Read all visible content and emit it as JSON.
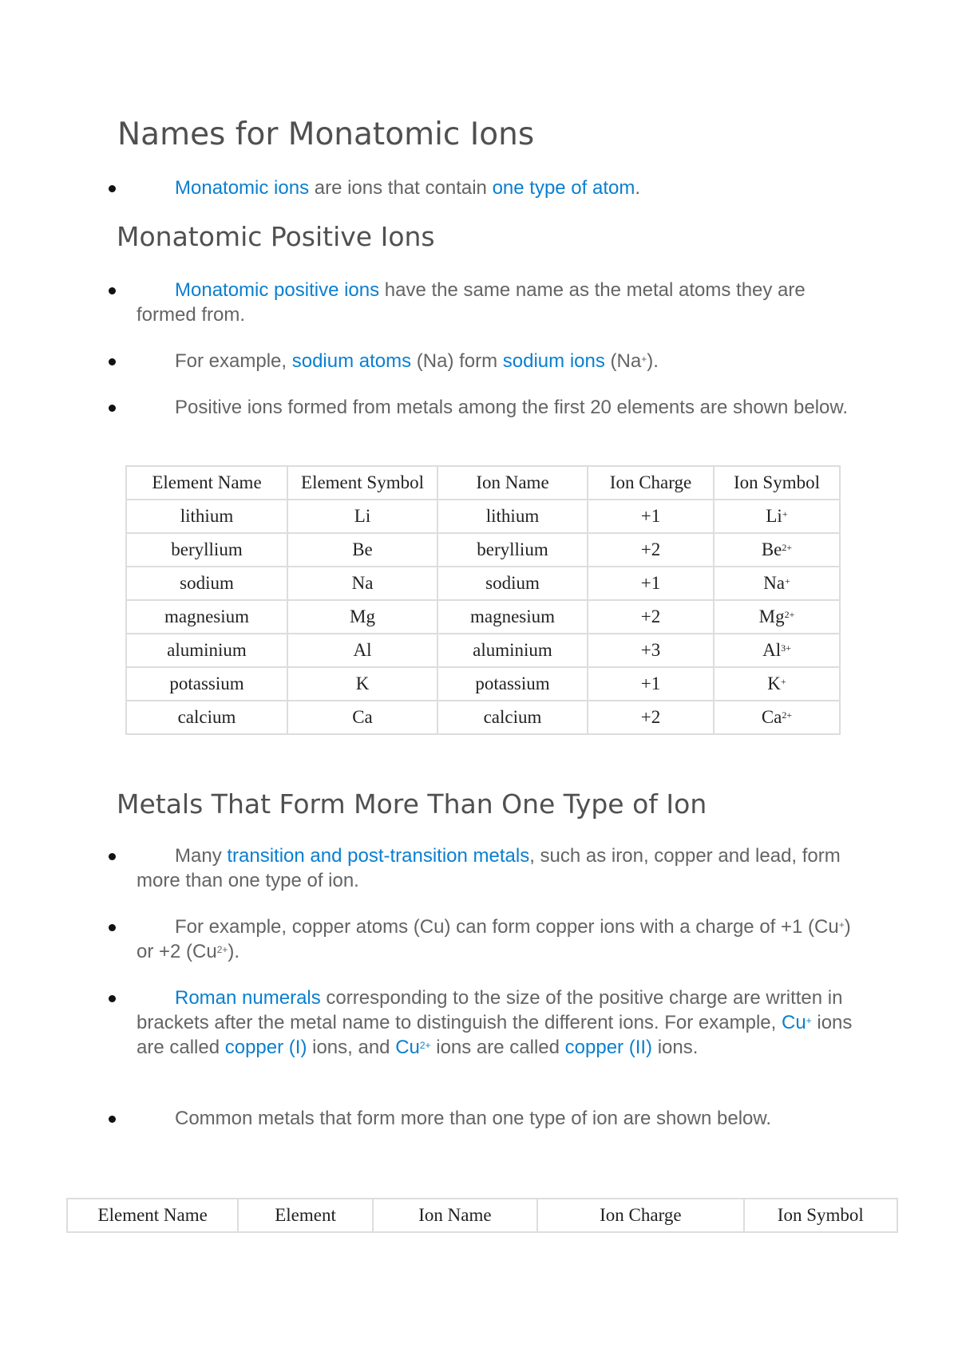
{
  "title": "Names for Monatomic Ions",
  "sections": [
    {
      "bullets": [
        [
          {
            "t": "Monatomic ions",
            "hl": true
          },
          {
            "t": " are ions that contain "
          },
          {
            "t": "one type of atom",
            "hl": true
          },
          {
            "t": "."
          }
        ]
      ]
    },
    {
      "heading": "Monatomic Positive Ions",
      "bullets": [
        [
          {
            "t": "Monatomic positive ions",
            "hl": true
          },
          {
            "t": " have the same name as the metal atoms they are formed from."
          }
        ],
        [
          {
            "t": "For example, "
          },
          {
            "t": "sodium atoms",
            "hl": true
          },
          {
            "t": " (Na) form "
          },
          {
            "t": "sodium ions",
            "hl": true
          },
          {
            "t": " (Na"
          },
          {
            "t": "+",
            "sup": true
          },
          {
            "t": ")."
          }
        ],
        [
          {
            "t": "Positive ions formed from metals among the first 20 elements are shown below."
          }
        ]
      ]
    },
    {
      "heading": "Metals That Form More Than One Type of Ion",
      "bullets": [
        [
          {
            "t": "Many "
          },
          {
            "t": "transition and post-transition metals",
            "hl": true
          },
          {
            "t": ", such as iron, copper and lead, form more than one type of ion."
          }
        ],
        [
          {
            "t": "For example, copper atoms (Cu) can form copper ions with a charge of +1 (Cu"
          },
          {
            "t": "+",
            "sup": true
          },
          {
            "t": ") or +2 (Cu"
          },
          {
            "t": "2+",
            "sup": true
          },
          {
            "t": ")."
          }
        ],
        [
          {
            "t": "Roman numerals",
            "hl": true
          },
          {
            "t": " corresponding to the size of the positive charge are written in brackets after the metal name to distinguish the different ions. For example, "
          },
          {
            "t": "Cu",
            "hl": true
          },
          {
            "t": "+",
            "sup": true,
            "hl": true
          },
          {
            "t": " ions are called "
          },
          {
            "t": "copper (I)",
            "hl": true
          },
          {
            "t": " ions, and "
          },
          {
            "t": "Cu",
            "hl": true
          },
          {
            "t": "2+",
            "sup": true,
            "hl": true
          },
          {
            "t": " ions are called "
          },
          {
            "t": "copper (II)",
            "hl": true
          },
          {
            "t": " ions."
          }
        ],
        [
          {
            "t": "Common metals that form more than one type of ion are shown below."
          }
        ]
      ]
    }
  ],
  "table1": {
    "headers": [
      "Element Name",
      "Element Symbol",
      "Ion Name",
      "Ion Charge",
      "Ion Symbol"
    ],
    "rows": [
      [
        "lithium",
        "Li",
        "lithium",
        "+1",
        "Li",
        "+"
      ],
      [
        "beryllium",
        "Be",
        "beryllium",
        "+2",
        "Be",
        "2+"
      ],
      [
        "sodium",
        "Na",
        "sodium",
        "+1",
        "Na",
        "+"
      ],
      [
        "magnesium",
        "Mg",
        "magnesium",
        "+2",
        "Mg",
        "2+"
      ],
      [
        "aluminium",
        "Al",
        "aluminium",
        "+3",
        "Al",
        "3+"
      ],
      [
        "potassium",
        "K",
        "potassium",
        "+1",
        "K",
        "+"
      ],
      [
        "calcium",
        "Ca",
        "calcium",
        "+2",
        "Ca",
        "2+"
      ]
    ]
  },
  "table2": {
    "headers": [
      "Element Name",
      "Element",
      "Ion Name",
      "Ion Charge",
      "Ion Symbol"
    ]
  },
  "colors": {
    "highlight": "#0a7fd0",
    "text": "#646464",
    "heading": "#505050"
  }
}
